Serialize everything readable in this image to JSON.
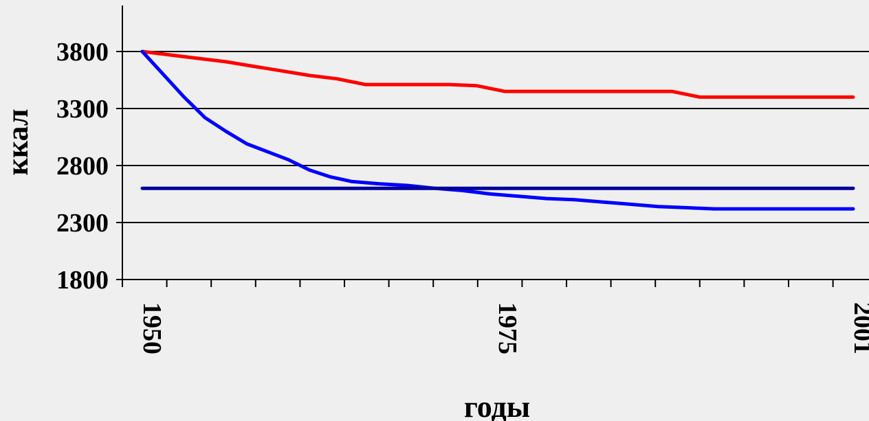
{
  "chart_data": {
    "type": "line",
    "title": "",
    "xlabel": "годы",
    "ylabel": "ккал",
    "xlim": [
      1950,
      2001
    ],
    "ylim": [
      1800,
      4100
    ],
    "yticks": [
      1800,
      2300,
      2800,
      3300,
      3800
    ],
    "xtick_labels": [
      "1950",
      "1975",
      "2001"
    ],
    "grid": true,
    "legend": "none",
    "colors": [
      "#ff0000",
      "#0000ff",
      "#000099"
    ],
    "series": [
      {
        "x": [
          1950,
          1952,
          1954,
          1956,
          1958,
          1960,
          1962,
          1964,
          1966,
          1968,
          1970,
          1972,
          1974,
          1976,
          1978,
          1980,
          1982,
          1984,
          1986,
          1988,
          1990,
          1992,
          1994,
          1996,
          1998,
          2000,
          2001
        ],
        "values": [
          3800,
          3770,
          3740,
          3710,
          3670,
          3630,
          3590,
          3560,
          3510,
          3510,
          3510,
          3510,
          3500,
          3450,
          3450,
          3450,
          3450,
          3450,
          3450,
          3450,
          3400,
          3400,
          3400,
          3400,
          3400,
          3400,
          3400
        ]
      },
      {
        "x": [
          1950,
          1951.5,
          1953,
          1954.5,
          1956,
          1957.5,
          1959,
          1960.5,
          1962,
          1963.5,
          1965,
          1967,
          1969,
          1971,
          1973,
          1975,
          1977,
          1979,
          1981,
          1983,
          1985,
          1987,
          1989,
          1991,
          1993,
          1995,
          1997,
          1999,
          2001
        ],
        "values": [
          3800,
          3600,
          3400,
          3220,
          3100,
          2990,
          2920,
          2850,
          2760,
          2700,
          2660,
          2640,
          2625,
          2600,
          2580,
          2550,
          2530,
          2510,
          2500,
          2480,
          2460,
          2440,
          2430,
          2420,
          2420,
          2420,
          2420,
          2420,
          2420
        ]
      },
      {
        "x": [
          1950,
          2001
        ],
        "values": [
          2600,
          2600
        ]
      }
    ]
  }
}
